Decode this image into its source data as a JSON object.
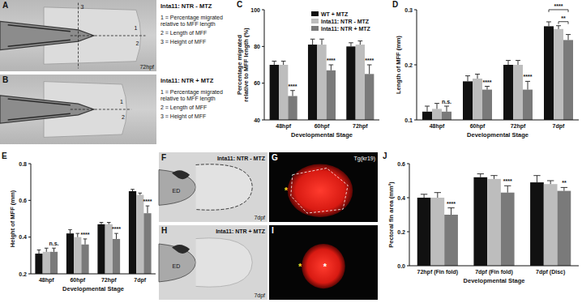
{
  "image_panels": [
    {
      "letter": "A",
      "condition": "Inta11: NTR - MTZ",
      "stage": "72hpf",
      "markers": [
        "1",
        "2",
        "3"
      ],
      "key": [
        "1 = Percentage migrated relative to MFF length",
        "2 = Length of MFF",
        "3 = Height of MFF"
      ]
    },
    {
      "letter": "B",
      "condition": "Inta11: NTR + MTZ",
      "markers": [
        "1",
        "2"
      ],
      "key": [
        "1 = Percentage migrated relative to MFF length",
        "2 = Length of MFF",
        "3 = Height of MFF"
      ]
    },
    {
      "letter": "F",
      "condition": "Inta11: NTR - MTZ",
      "stage": "7dpf",
      "label": "ED",
      "outline": true
    },
    {
      "letter": "G",
      "label": "Tg(kr19)",
      "stars": [
        "*"
      ],
      "outline": true
    },
    {
      "letter": "H",
      "condition": "Inta11: NTR + MTZ",
      "stage": "7dpf",
      "label": "ED",
      "outline": false
    },
    {
      "letter": "I",
      "stars": [
        "*",
        "*"
      ],
      "outline": false
    }
  ],
  "chart_data": [
    {
      "type": "bar",
      "title": "C",
      "y_label": "Percentage migrated relative to MFF length (%)",
      "x_label": "Developmental Stage",
      "categories": [
        "48hpf",
        "60hpf",
        "72hpf"
      ],
      "ylim": [
        40,
        100
      ],
      "yticks": [
        40,
        60,
        80,
        100
      ],
      "legend": "top right",
      "series": [
        {
          "name": "WT + MTZ",
          "color": "#111111",
          "values": [
            70,
            81,
            80
          ],
          "errors": [
            2,
            3,
            2
          ],
          "significance": [
            null,
            null,
            null
          ]
        },
        {
          "name": "Inta11: NTR - MTZ",
          "color": "#bdbdbd",
          "values": [
            70,
            81,
            81
          ],
          "errors": [
            2,
            3,
            2
          ],
          "significance": [
            null,
            null,
            null
          ]
        },
        {
          "name": "Inta11: NTR + MTZ",
          "color": "#7a7a7a",
          "values": [
            53,
            67,
            65
          ],
          "errors": [
            3,
            3,
            5
          ],
          "significance": [
            "****",
            "****",
            "****"
          ]
        }
      ]
    },
    {
      "type": "bar",
      "title": "D",
      "y_label": "Length of MFF (mm)",
      "x_label": "Developmental Stage",
      "categories": [
        "48hpf",
        "60hpf",
        "72hpf",
        "7dpf"
      ],
      "ylim": [
        0.1,
        0.3
      ],
      "yticks": [
        0.1,
        0.2,
        0.3
      ],
      "series": [
        {
          "name": "WT + MTZ",
          "color": "#111111",
          "values": [
            0.115,
            0.17,
            0.2,
            0.27
          ],
          "errors": [
            0.01,
            0.01,
            0.008,
            0.008
          ],
          "significance": [
            null,
            null,
            null,
            null
          ]
        },
        {
          "name": "Inta11: NTR - MTZ",
          "color": "#bdbdbd",
          "values": [
            0.12,
            0.175,
            0.2,
            0.265
          ],
          "errors": [
            0.01,
            0.008,
            0.008,
            0.006
          ],
          "significance": [
            null,
            null,
            null,
            null
          ]
        },
        {
          "name": "Inta11: NTR + MTZ",
          "color": "#7a7a7a",
          "values": [
            0.115,
            0.155,
            0.155,
            0.245
          ],
          "errors": [
            0.01,
            0.006,
            0.015,
            0.01
          ],
          "significance": [
            "n.s.",
            "****",
            "****",
            null
          ]
        }
      ],
      "brackets": [
        {
          "category": 3,
          "from": 0,
          "to": 2,
          "label": "****"
        },
        {
          "category": 3,
          "from": 1,
          "to": 2,
          "label": "**"
        }
      ]
    },
    {
      "type": "bar",
      "title": "E",
      "y_label": "Height of MFF (mm)",
      "x_label": "Developmental Stage",
      "categories": [
        "48hpf",
        "60hpf",
        "72hpf",
        "7dpf"
      ],
      "ylim": [
        0.2,
        0.8
      ],
      "yticks": [
        0.2,
        0.4,
        0.6,
        0.8
      ],
      "series": [
        {
          "name": "WT + MTZ",
          "color": "#111111",
          "values": [
            0.31,
            0.42,
            0.47,
            0.65
          ],
          "errors": [
            0.02,
            0.02,
            0.01,
            0.01
          ],
          "significance": [
            null,
            null,
            null,
            null
          ]
        },
        {
          "name": "Inta11: NTR - MTZ",
          "color": "#bdbdbd",
          "values": [
            0.32,
            0.4,
            0.47,
            0.63
          ],
          "errors": [
            0.02,
            0.02,
            0.01,
            0.01
          ],
          "significance": [
            null,
            null,
            null,
            null
          ]
        },
        {
          "name": "Inta11: NTR + MTZ",
          "color": "#7a7a7a",
          "values": [
            0.32,
            0.36,
            0.39,
            0.53
          ],
          "errors": [
            0.02,
            0.03,
            0.03,
            0.04
          ],
          "significance": [
            "n.s.",
            "****",
            "****",
            "****"
          ]
        }
      ]
    },
    {
      "type": "bar",
      "title": "J",
      "y_label": "Pectoral fin area (mm²)",
      "x_label": "Developmental Stage",
      "categories": [
        "72hpf (Fin fold)",
        "7dpf (Fin fold)",
        "7dpf (Disc)"
      ],
      "ylim": [
        0,
        0.6
      ],
      "yticks": [
        {
          "value": 0,
          "label": "0.0"
        },
        0.2,
        0.4,
        0.6
      ],
      "series": [
        {
          "name": "WT + MTZ",
          "color": "#111111",
          "values": [
            0.4,
            0.52,
            0.49
          ],
          "errors": [
            0.02,
            0.02,
            0.04
          ],
          "significance": [
            null,
            null,
            null
          ]
        },
        {
          "name": "Inta11: NTR - MTZ",
          "color": "#bdbdbd",
          "values": [
            0.4,
            0.51,
            0.48
          ],
          "errors": [
            0.03,
            0.02,
            0.02
          ],
          "significance": [
            null,
            null,
            null
          ]
        },
        {
          "name": "Inta11: NTR + MTZ",
          "color": "#7a7a7a",
          "values": [
            0.3,
            0.43,
            0.44
          ],
          "errors": [
            0.04,
            0.04,
            0.02
          ],
          "significance": [
            "****",
            "****",
            "**"
          ]
        }
      ]
    }
  ]
}
